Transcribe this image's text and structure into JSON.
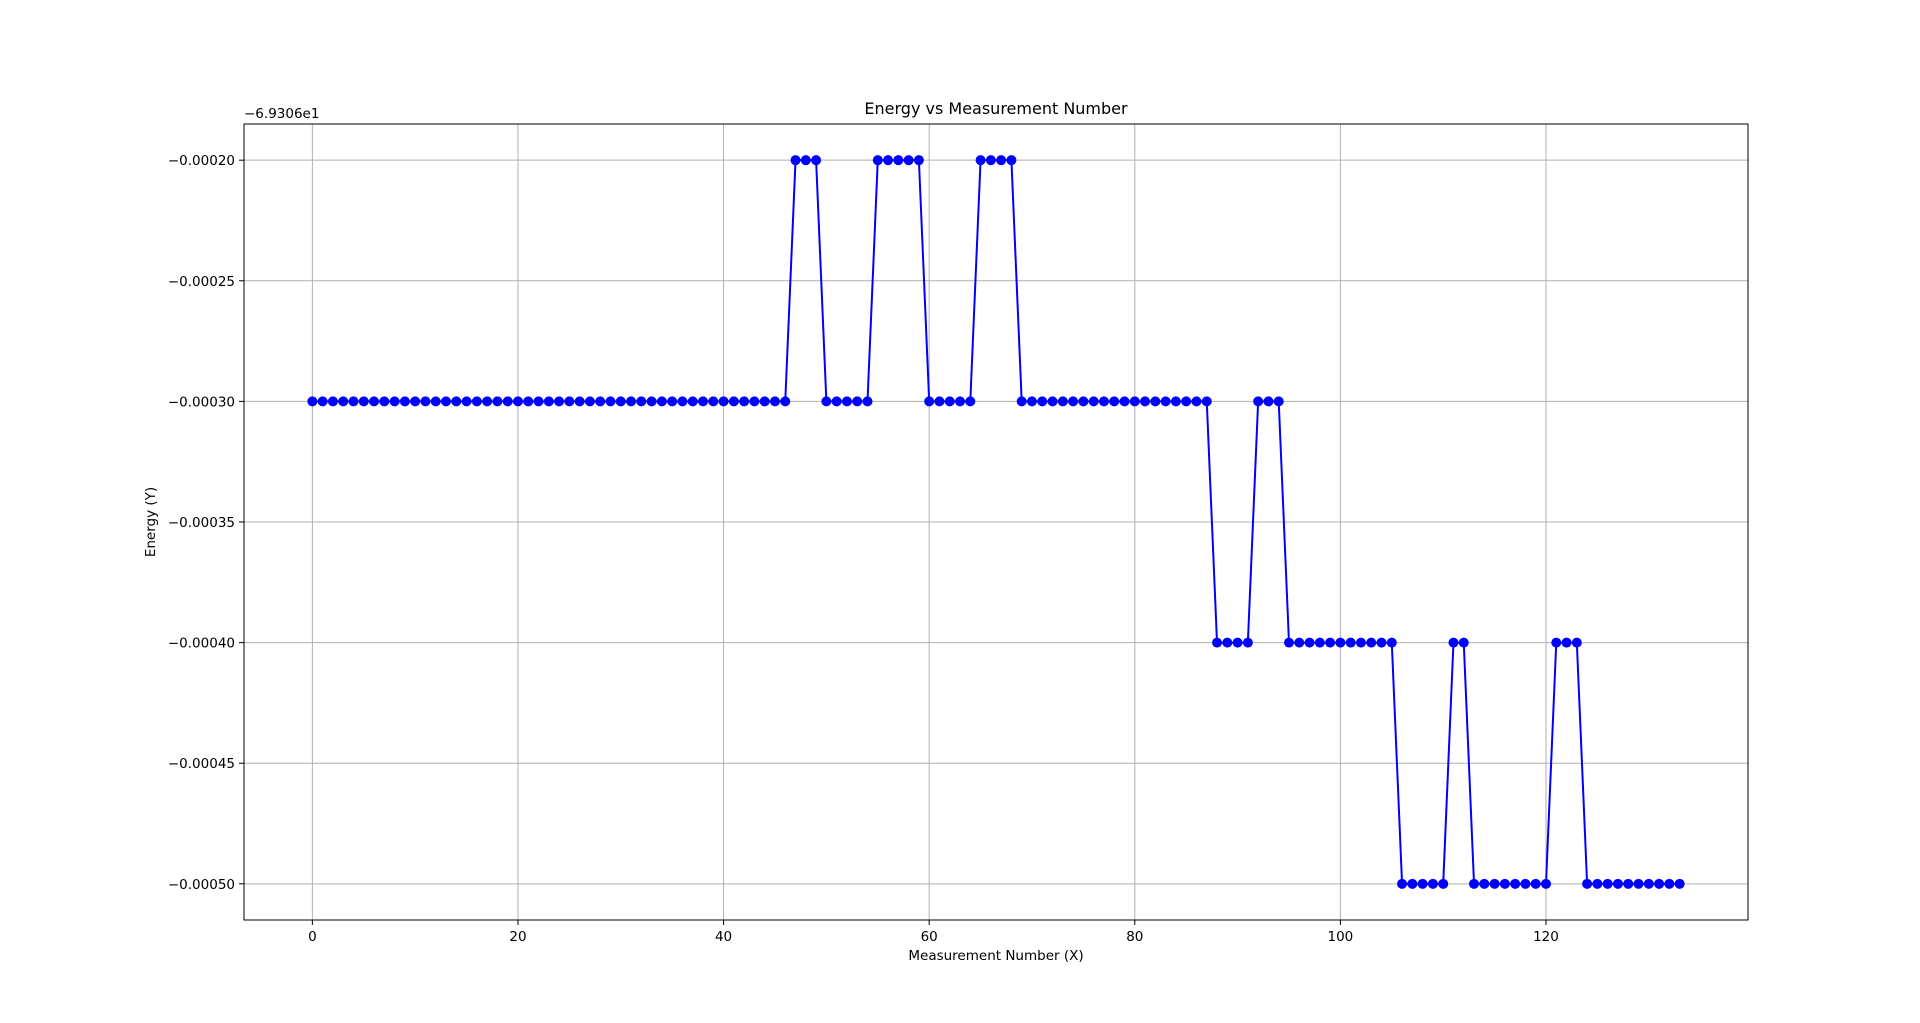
{
  "chart_data": {
    "type": "line",
    "title": "Energy vs Measurement Number",
    "xlabel": "Measurement Number (X)",
    "ylabel": "Energy (Y)",
    "offset_label": "−6.9306e1",
    "x_ticks": [
      "0",
      "20",
      "40",
      "60",
      "80",
      "100",
      "120"
    ],
    "y_ticks": [
      "−0.00020",
      "−0.00025",
      "−0.00030",
      "−0.00035",
      "−0.00040",
      "−0.00045",
      "−0.00050"
    ],
    "xlim": [
      -6.65,
      139.65
    ],
    "ylim": [
      -0.000515,
      -0.000185
    ],
    "y_tick_values": [
      -0.0002,
      -0.00025,
      -0.0003,
      -0.00035,
      -0.0004,
      -0.00045,
      -0.0005
    ],
    "x_tick_values": [
      0,
      20,
      40,
      60,
      80,
      100,
      120
    ],
    "grid": true,
    "series": [
      {
        "color": "#0000ff",
        "marker": "circle",
        "x": [
          0,
          1,
          2,
          3,
          4,
          5,
          6,
          7,
          8,
          9,
          10,
          11,
          12,
          13,
          14,
          15,
          16,
          17,
          18,
          19,
          20,
          21,
          22,
          23,
          24,
          25,
          26,
          27,
          28,
          29,
          30,
          31,
          32,
          33,
          34,
          35,
          36,
          37,
          38,
          39,
          40,
          41,
          42,
          43,
          44,
          45,
          46,
          47,
          48,
          49,
          50,
          51,
          52,
          53,
          54,
          55,
          56,
          57,
          58,
          59,
          60,
          61,
          62,
          63,
          64,
          65,
          66,
          67,
          68,
          69,
          70,
          71,
          72,
          73,
          74,
          75,
          76,
          77,
          78,
          79,
          80,
          81,
          82,
          83,
          84,
          85,
          86,
          87,
          88,
          89,
          90,
          91,
          92,
          93,
          94,
          95,
          96,
          97,
          98,
          99,
          100,
          101,
          102,
          103,
          104,
          105,
          106,
          107,
          108,
          109,
          110,
          111,
          112,
          113,
          114,
          115,
          116,
          117,
          118,
          119,
          120,
          121,
          122,
          123,
          124,
          125,
          126,
          127,
          128,
          129,
          130,
          131,
          132,
          133
        ],
        "y": [
          -0.0003,
          -0.0003,
          -0.0003,
          -0.0003,
          -0.0003,
          -0.0003,
          -0.0003,
          -0.0003,
          -0.0003,
          -0.0003,
          -0.0003,
          -0.0003,
          -0.0003,
          -0.0003,
          -0.0003,
          -0.0003,
          -0.0003,
          -0.0003,
          -0.0003,
          -0.0003,
          -0.0003,
          -0.0003,
          -0.0003,
          -0.0003,
          -0.0003,
          -0.0003,
          -0.0003,
          -0.0003,
          -0.0003,
          -0.0003,
          -0.0003,
          -0.0003,
          -0.0003,
          -0.0003,
          -0.0003,
          -0.0003,
          -0.0003,
          -0.0003,
          -0.0003,
          -0.0003,
          -0.0003,
          -0.0003,
          -0.0003,
          -0.0003,
          -0.0003,
          -0.0003,
          -0.0003,
          -0.0002,
          -0.0002,
          -0.0002,
          -0.0003,
          -0.0003,
          -0.0003,
          -0.0003,
          -0.0003,
          -0.0002,
          -0.0002,
          -0.0002,
          -0.0002,
          -0.0002,
          -0.0003,
          -0.0003,
          -0.0003,
          -0.0003,
          -0.0003,
          -0.0002,
          -0.0002,
          -0.0002,
          -0.0002,
          -0.0003,
          -0.0003,
          -0.0003,
          -0.0003,
          -0.0003,
          -0.0003,
          -0.0003,
          -0.0003,
          -0.0003,
          -0.0003,
          -0.0003,
          -0.0003,
          -0.0003,
          -0.0003,
          -0.0003,
          -0.0003,
          -0.0003,
          -0.0003,
          -0.0003,
          -0.0004,
          -0.0004,
          -0.0004,
          -0.0004,
          -0.0003,
          -0.0003,
          -0.0003,
          -0.0004,
          -0.0004,
          -0.0004,
          -0.0004,
          -0.0004,
          -0.0004,
          -0.0004,
          -0.0004,
          -0.0004,
          -0.0004,
          -0.0004,
          -0.0005,
          -0.0005,
          -0.0005,
          -0.0005,
          -0.0005,
          -0.0004,
          -0.0004,
          -0.0005,
          -0.0005,
          -0.0005,
          -0.0005,
          -0.0005,
          -0.0005,
          -0.0005,
          -0.0005,
          -0.0004,
          -0.0004,
          -0.0004,
          -0.0005,
          -0.0005,
          -0.0005,
          -0.0005,
          -0.0005,
          -0.0005,
          -0.0005,
          -0.0005,
          -0.0005,
          -0.0005
        ]
      }
    ]
  }
}
